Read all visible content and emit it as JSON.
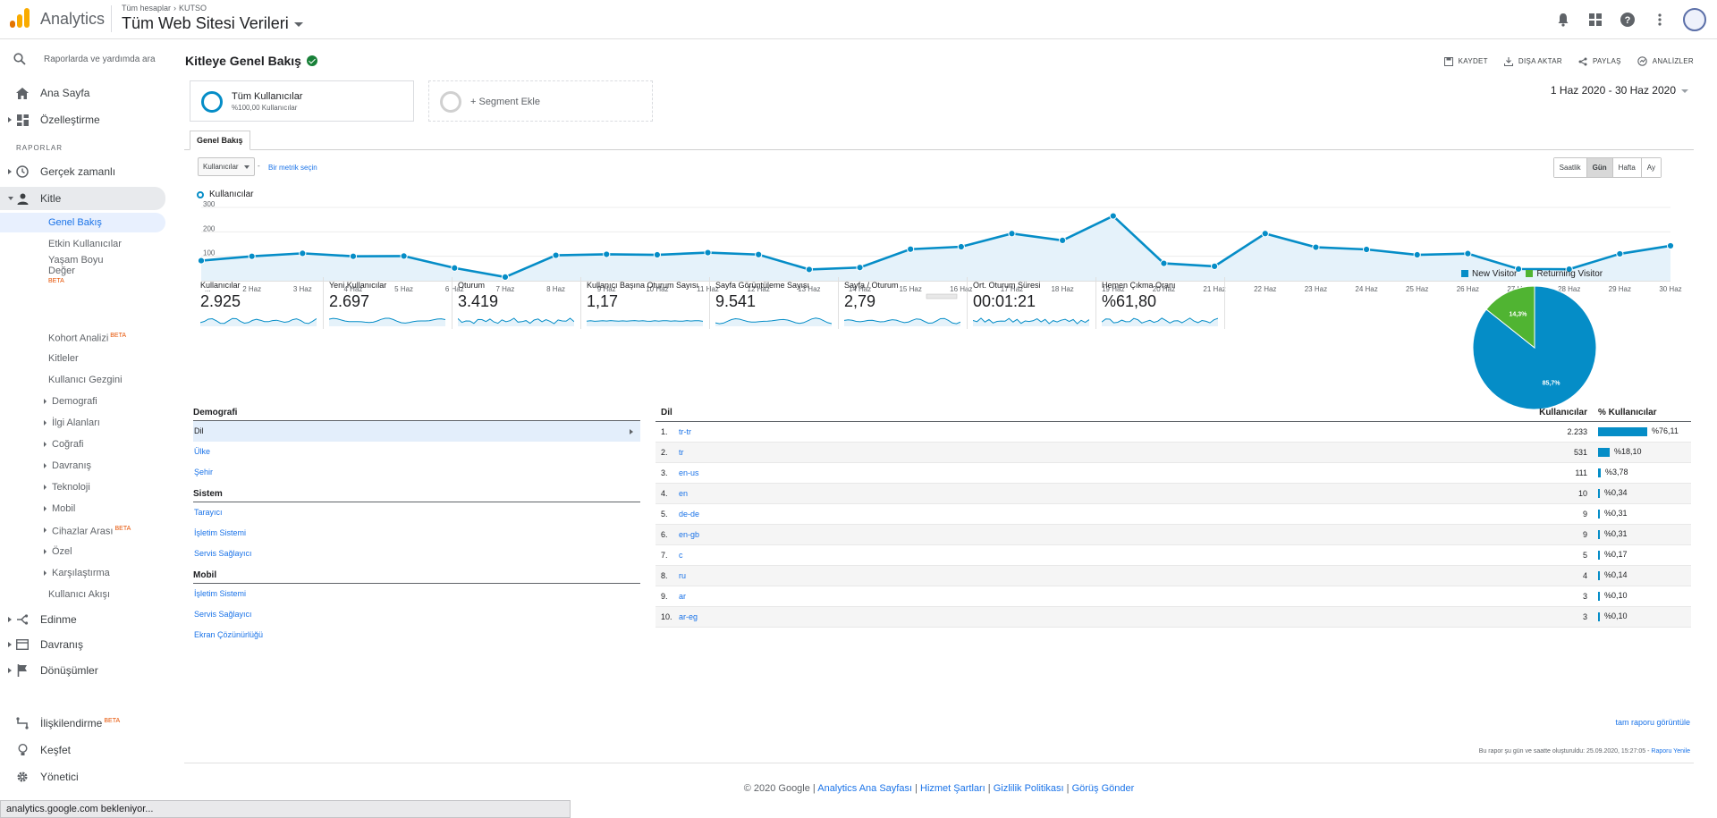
{
  "topbar": {
    "app_name": "Analytics",
    "crumb_all": "Tüm hesaplar",
    "crumb_account": "KUTSO",
    "property": "Tüm Web Sitesi Verileri"
  },
  "sidebar": {
    "search_placeholder": "Raporlarda ve yardımda ara",
    "home": "Ana Sayfa",
    "customize": "Özelleştirme",
    "reports_label": "RAPORLAR",
    "realtime": "Gerçek zamanlı",
    "audience": "Kitle",
    "audience_items": [
      "Genel Bakış",
      "Etkin Kullanıcılar",
      "Yaşam Boyu Değer",
      "Kohort Analizi",
      "Kitleler",
      "Kullanıcı Gezgini",
      "Demografi",
      "İlgi Alanları",
      "Coğrafi",
      "Davranış",
      "Teknoloji",
      "Mobil",
      "Cihazlar Arası",
      "Özel",
      "Karşılaştırma",
      "Kullanıcı Akışı"
    ],
    "beta": "BETA",
    "acquisition": "Edinme",
    "behavior": "Davranış",
    "conversions": "Dönüşümler",
    "attribution": "İlişkilendirme",
    "discover": "Keşfet",
    "admin": "Yönetici"
  },
  "status_text": "analytics.google.com bekleniyor...",
  "header": {
    "title": "Kitleye Genel Bakış",
    "save": "KAYDET",
    "export": "DIŞA AKTAR",
    "share": "PAYLAŞ",
    "insights": "ANALİZLER"
  },
  "segments": {
    "s1_title": "Tüm Kullanıcılar",
    "s1_sub": "%100,00 Kullanıcılar",
    "s2_title": "+ Segment Ekle"
  },
  "date_range": "1 Haz 2020 - 30 Haz 2020",
  "tab": "Genel Bakış",
  "metric_select": "Kullanıcılar",
  "vs_text": "-",
  "pick_metric": "Bir metrik seçin",
  "granularity": [
    "Saatlik",
    "Gün",
    "Hafta",
    "Ay"
  ],
  "colors": {
    "accent": "#058dc7",
    "green": "#50b432",
    "link": "#1a73e8"
  },
  "chart_data": [
    {
      "type": "area",
      "legend": "Kullanıcılar",
      "ylim": [
        0,
        300
      ],
      "yticks": [
        100,
        200,
        300
      ],
      "x": [
        "...",
        "2 Haz",
        "3 Haz",
        "4 Haz",
        "5 Haz",
        "6 Haz",
        "7 Haz",
        "8 Haz",
        "9 Haz",
        "10 Haz",
        "11 Haz",
        "12 Haz",
        "13 Haz",
        "14 Haz",
        "15 Haz",
        "16 Haz",
        "17 Haz",
        "18 Haz",
        "19 Haz",
        "20 Haz",
        "21 Haz",
        "22 Haz",
        "23 Haz",
        "24 Haz",
        "25 Haz",
        "26 Haz",
        "27 Haz",
        "28 Haz",
        "29 Haz",
        "30 Haz"
      ],
      "values": [
        82,
        100,
        112,
        100,
        101,
        52,
        15,
        104,
        108,
        106,
        115,
        107,
        46,
        54,
        129,
        139,
        193,
        165,
        265,
        71,
        59,
        193,
        137,
        128,
        106,
        111,
        48,
        47,
        110,
        143
      ]
    },
    {
      "type": "pie",
      "series": [
        {
          "name": "New Visitor",
          "value": 85.7,
          "label": "85,7%"
        },
        {
          "name": "Returning Visitor",
          "value": 14.3,
          "label": "14,3%"
        }
      ]
    }
  ],
  "kpis": [
    {
      "label": "Kullanıcılar",
      "value": "2.925"
    },
    {
      "label": "Yeni Kullanıcılar",
      "value": "2.697"
    },
    {
      "label": "Oturum",
      "value": "3.419"
    },
    {
      "label": "Kullanıcı Başına Oturum Sayısı",
      "value": "1,17"
    },
    {
      "label": "Sayfa Görüntüleme Sayısı",
      "value": "9.541"
    },
    {
      "label": "Sayfa / Oturum",
      "value": "2,79"
    },
    {
      "label": "Ort. Oturum Süresi",
      "value": "00:01:21"
    },
    {
      "label": "Hemen Çıkma Oranı",
      "value": "%61,80"
    }
  ],
  "demographics": {
    "h1": "Demografi",
    "g1": [
      "Dil",
      "Ülke",
      "Şehir"
    ],
    "h2": "Sistem",
    "g2": [
      "Tarayıcı",
      "İşletim Sistemi",
      "Servis Sağlayıcı"
    ],
    "h3": "Mobil",
    "g3": [
      "İşletim Sistemi",
      "Servis Sağlayıcı",
      "Ekran Çözünürlüğü"
    ]
  },
  "language_table": {
    "col_lang": "Dil",
    "col_users": "Kullanıcılar",
    "col_pct": "% Kullanıcılar",
    "rows": [
      {
        "rank": "1.",
        "code": "tr-tr",
        "users": "2.233",
        "pct": "%76,11",
        "frac": 0.7611
      },
      {
        "rank": "2.",
        "code": "tr",
        "users": "531",
        "pct": "%18,10",
        "frac": 0.181
      },
      {
        "rank": "3.",
        "code": "en-us",
        "users": "111",
        "pct": "%3,78",
        "frac": 0.0378
      },
      {
        "rank": "4.",
        "code": "en",
        "users": "10",
        "pct": "%0,34",
        "frac": 0.0034
      },
      {
        "rank": "5.",
        "code": "de-de",
        "users": "9",
        "pct": "%0,31",
        "frac": 0.0031
      },
      {
        "rank": "6.",
        "code": "en-gb",
        "users": "9",
        "pct": "%0,31",
        "frac": 0.0031
      },
      {
        "rank": "7.",
        "code": "c",
        "users": "5",
        "pct": "%0,17",
        "frac": 0.0017
      },
      {
        "rank": "8.",
        "code": "ru",
        "users": "4",
        "pct": "%0,14",
        "frac": 0.0014
      },
      {
        "rank": "9.",
        "code": "ar",
        "users": "3",
        "pct": "%0,10",
        "frac": 0.001
      },
      {
        "rank": "10.",
        "code": "ar-eg",
        "users": "3",
        "pct": "%0,10",
        "frac": 0.001
      }
    ],
    "full_report": "tam raporu görüntüle"
  },
  "report_note": "Bu rapor şu gün ve saatte oluşturuldu: 25.09.2020, 15:27:05 -",
  "refresh_report": "Raporu Yenile",
  "footer": {
    "copyright": "© 2020 Google |",
    "links": [
      "Analytics Ana Sayfası",
      "Hizmet Şartları",
      "Gizlilik Politikası",
      "Görüş Gönder"
    ]
  }
}
